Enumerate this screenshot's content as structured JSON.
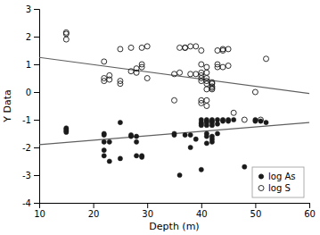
{
  "chart_data": {
    "type": "scatter",
    "xlabel": "Depth (m)",
    "ylabel": "Y Data",
    "xlim": [
      10,
      60
    ],
    "ylim": [
      -4,
      3
    ],
    "xticks": [
      10,
      20,
      30,
      40,
      50,
      60
    ],
    "yticks": [
      -4,
      -3,
      -2,
      -1,
      0,
      1,
      2,
      3
    ],
    "grid": false,
    "legend": "lower right",
    "series": [
      {
        "name": "log As",
        "type": "scatter",
        "marker": "circle",
        "color": "#1a1a1a",
        "x": [
          15,
          15,
          15,
          15,
          22,
          22,
          22,
          22,
          22,
          23,
          23,
          25,
          25,
          27,
          27,
          28,
          28,
          28,
          29,
          29,
          35,
          35,
          36,
          37,
          38,
          38,
          39,
          40,
          40,
          40,
          40,
          40,
          41,
          41,
          41,
          41,
          41,
          41,
          41,
          42,
          42,
          42,
          42,
          42,
          42,
          42,
          43,
          43,
          43,
          44,
          44,
          45,
          45,
          46,
          48,
          50,
          50,
          51,
          52
        ],
        "values": [
          -1.3,
          -1.35,
          -1.4,
          -1.45,
          -1.5,
          -1.55,
          -1.8,
          -2.1,
          -2.3,
          -1.8,
          -2.5,
          -1.1,
          -2.4,
          -1.55,
          -1.6,
          -1.6,
          -1.8,
          -2.3,
          -2.3,
          -2.35,
          -1.5,
          -1.55,
          -3.0,
          -1.55,
          -1.55,
          -2.0,
          -1.7,
          -1.0,
          -1.1,
          -1.15,
          -1.2,
          -2.8,
          -1.0,
          -1.05,
          -1.1,
          -1.2,
          -1.5,
          -1.6,
          -1.85,
          -1.0,
          -1.05,
          -1.1,
          -1.2,
          -1.6,
          -1.7,
          -1.8,
          -1.0,
          -1.15,
          -1.5,
          -1.0,
          -1.05,
          -1.0,
          -1.05,
          -1.0,
          -2.7,
          -1.0,
          -1.05,
          -1.05,
          -1.1
        ]
      },
      {
        "name": "log S",
        "type": "scatter",
        "marker": "open-circle",
        "color": "#1a1a1a",
        "x": [
          15,
          15,
          15,
          22,
          22,
          22,
          23,
          23,
          25,
          25,
          25,
          27,
          27,
          28,
          28,
          29,
          29,
          29,
          30,
          30,
          35,
          35,
          36,
          36,
          37,
          37,
          38,
          38,
          39,
          39,
          40,
          40,
          40,
          40,
          40,
          40,
          40,
          40,
          41,
          41,
          41,
          41,
          41,
          41,
          41,
          41,
          42,
          42,
          42,
          42,
          42,
          43,
          43,
          43,
          44,
          44,
          44,
          45,
          45,
          46,
          48,
          50,
          51,
          52
        ],
        "values": [
          1.9,
          2.1,
          2.15,
          0.4,
          0.5,
          1.1,
          0.45,
          0.6,
          0.3,
          0.4,
          1.55,
          0.75,
          1.6,
          0.7,
          0.85,
          0.9,
          1.0,
          1.6,
          0.5,
          1.65,
          -0.3,
          0.65,
          0.7,
          1.6,
          1.6,
          1.6,
          0.65,
          1.65,
          0.65,
          1.65,
          -0.3,
          -0.4,
          0.4,
          0.5,
          0.6,
          0.7,
          1.0,
          1.5,
          -0.5,
          -0.3,
          0.1,
          0.3,
          0.4,
          0.5,
          0.7,
          0.9,
          0.1,
          0.15,
          0.2,
          0.3,
          0.35,
          0.9,
          1.0,
          1.5,
          0.9,
          1.5,
          1.55,
          0.95,
          1.55,
          -0.75,
          -1.0,
          0.0,
          -1.0,
          1.2
        ]
      },
      {
        "type": "line",
        "line_style": "solid",
        "color": "#606060",
        "x": [
          10,
          60
        ],
        "values": [
          -1.9,
          -1.1
        ]
      },
      {
        "type": "line",
        "line_style": "solid",
        "color": "#606060",
        "x": [
          10,
          60
        ],
        "values": [
          1.25,
          -0.05
        ]
      }
    ]
  }
}
